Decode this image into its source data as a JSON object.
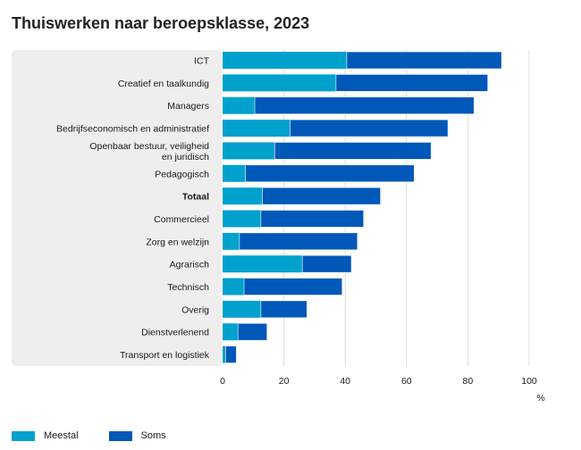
{
  "colors": {
    "meestal": "#00A1CD",
    "soms": "#0058B8",
    "panel": "#EEEEEE",
    "grid": "#DDDDDD"
  },
  "chart_data": {
    "type": "bar",
    "orientation": "horizontal",
    "stacked": true,
    "title": "Thuiswerken naar beroepsklasse, 2023",
    "xlabel": "%",
    "xlim": [
      0,
      100
    ],
    "xticks": [
      0,
      20,
      40,
      60,
      80,
      100
    ],
    "grid": true,
    "legend_position": "bottom-left",
    "bold_categories": [
      "Totaal"
    ],
    "categories": [
      "ICT",
      "Creatief en taalkundig",
      "Managers",
      "Bedrijfseconomisch en administratief",
      "Openbaar bestuur, veiligheid\nen juridisch",
      "Pedagogisch",
      "Totaal",
      "Commercieel",
      "Zorg en welzijn",
      "Agrarisch",
      "Technisch",
      "Overig",
      "Dienstverlenend",
      "Transport en logistiek"
    ],
    "series": [
      {
        "name": "Meestal",
        "values": [
          40.5,
          37,
          10.5,
          22,
          17,
          7.5,
          13,
          12.5,
          5.5,
          26,
          7,
          12.5,
          5,
          1
        ]
      },
      {
        "name": "Soms",
        "values": [
          50.5,
          49.5,
          71.5,
          51.5,
          51,
          55,
          38.5,
          33.5,
          38.5,
          16,
          32,
          15,
          9.5,
          3.5
        ]
      }
    ]
  }
}
